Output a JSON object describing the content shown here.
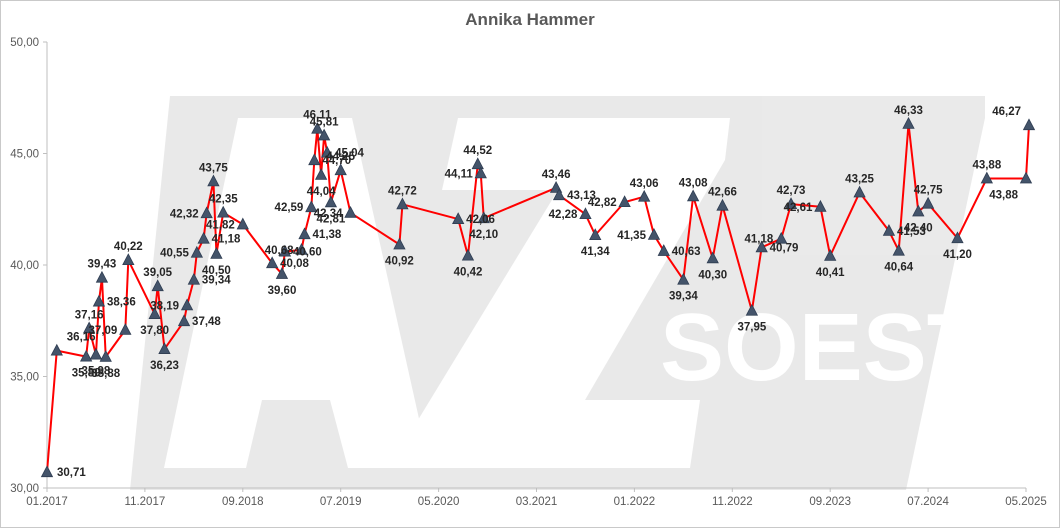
{
  "chart_data": {
    "type": "line",
    "title": "Annika Hammer",
    "xlabel": "",
    "ylabel": "",
    "ylim": [
      30,
      50
    ],
    "yticks": [
      "30,00",
      "35,00",
      "40,00",
      "45,00",
      "50,00"
    ],
    "xlim": [
      "2017-01",
      "2025-05"
    ],
    "xticks": [
      "01.2017",
      "11.2017",
      "09.2018",
      "07.2019",
      "05.2020",
      "03.2021",
      "01.2022",
      "11.2022",
      "09.2023",
      "07.2024",
      "05.2025"
    ],
    "grid": false,
    "legend": "none",
    "series_color": "#ff0000",
    "marker_color": "#44546a",
    "watermark_text": "AZ SOEST",
    "series": [
      {
        "points": [
          {
            "x": "2017-01",
            "y": 30.71,
            "label": "30,71"
          },
          {
            "x": "2017-02",
            "y": 36.16,
            "label": "36,16"
          },
          {
            "x": "2017-05",
            "y": 35.89,
            "label": "35,89"
          },
          {
            "x": "2017-05",
            "y": 37.16,
            "label": "37,16"
          },
          {
            "x": "2017-06",
            "y": 35.98,
            "label": "35,98"
          },
          {
            "x": "2017-06",
            "y": 38.36,
            "label": "38,36"
          },
          {
            "x": "2017-06",
            "y": 39.43,
            "label": "39,43"
          },
          {
            "x": "2017-07",
            "y": 35.88,
            "label": "35,88"
          },
          {
            "x": "2017-09",
            "y": 37.09,
            "label": "37,09"
          },
          {
            "x": "2017-09",
            "y": 40.22,
            "label": "40,22"
          },
          {
            "x": "2017-12",
            "y": 37.8,
            "label": "37,80"
          },
          {
            "x": "2017-12",
            "y": 39.05,
            "label": "39,05"
          },
          {
            "x": "2018-01",
            "y": 36.23,
            "label": "36,23"
          },
          {
            "x": "2018-03",
            "y": 37.48,
            "label": "37,48"
          },
          {
            "x": "2018-03",
            "y": 38.19,
            "label": "38,19"
          },
          {
            "x": "2018-04",
            "y": 39.34,
            "label": "39,34"
          },
          {
            "x": "2018-04",
            "y": 40.55,
            "label": "40,55"
          },
          {
            "x": "2018-05",
            "y": 41.18,
            "label": "41,18"
          },
          {
            "x": "2018-05",
            "y": 42.32,
            "label": "42,32"
          },
          {
            "x": "2018-06",
            "y": 43.75,
            "label": "43,75"
          },
          {
            "x": "2018-06",
            "y": 40.5,
            "label": "40,50"
          },
          {
            "x": "2018-07",
            "y": 42.35,
            "label": "42,35"
          },
          {
            "x": "2018-09",
            "y": 41.82,
            "label": "41,82"
          },
          {
            "x": "2018-12",
            "y": 40.08,
            "label": "40,08"
          },
          {
            "x": "2019-01",
            "y": 39.6,
            "label": "39,60"
          },
          {
            "x": "2019-01",
            "y": 40.6,
            "label": "40,60"
          },
          {
            "x": "2019-03",
            "y": 40.68,
            "label": "40,68"
          },
          {
            "x": "2019-03",
            "y": 41.38,
            "label": "41,38"
          },
          {
            "x": "2019-04",
            "y": 42.59,
            "label": "42,59"
          },
          {
            "x": "2019-04",
            "y": 44.7,
            "label": "44,70"
          },
          {
            "x": "2019-04",
            "y": 46.11,
            "label": "46,11"
          },
          {
            "x": "2019-05",
            "y": 44.04,
            "label": "44,04"
          },
          {
            "x": "2019-05",
            "y": 45.81,
            "label": "45,81"
          },
          {
            "x": "2019-05",
            "y": 45.04,
            "label": "45,04"
          },
          {
            "x": "2019-06",
            "y": 42.81,
            "label": "42,81"
          },
          {
            "x": "2019-07",
            "y": 44.25,
            "label": "44,25"
          },
          {
            "x": "2019-08",
            "y": 42.34,
            "label": "42,34"
          },
          {
            "x": "2020-01",
            "y": 40.92,
            "label": "40,92"
          },
          {
            "x": "2020-01",
            "y": 42.72,
            "label": "42,72"
          },
          {
            "x": "2020-07",
            "y": 42.06,
            "label": "42,06"
          },
          {
            "x": "2020-08",
            "y": 40.42,
            "label": "40,42"
          },
          {
            "x": "2020-09",
            "y": 44.52,
            "label": "44,52"
          },
          {
            "x": "2020-09",
            "y": 44.11,
            "label": "44,11"
          },
          {
            "x": "2020-09",
            "y": 42.1,
            "label": "42,10"
          },
          {
            "x": "2021-05",
            "y": 43.46,
            "label": "43,46"
          },
          {
            "x": "2021-05",
            "y": 43.13,
            "label": "43,13"
          },
          {
            "x": "2021-08",
            "y": 42.28,
            "label": "42,28"
          },
          {
            "x": "2021-09",
            "y": 41.34,
            "label": "41,34"
          },
          {
            "x": "2021-12",
            "y": 42.82,
            "label": "42,82"
          },
          {
            "x": "2022-02",
            "y": 43.06,
            "label": "43,06"
          },
          {
            "x": "2022-03",
            "y": 41.35,
            "label": "41,35"
          },
          {
            "x": "2022-04",
            "y": 40.63,
            "label": "40,63"
          },
          {
            "x": "2022-06",
            "y": 39.34,
            "label": "39,34"
          },
          {
            "x": "2022-07",
            "y": 43.08,
            "label": "43,08"
          },
          {
            "x": "2022-09",
            "y": 40.3,
            "label": "40,30"
          },
          {
            "x": "2022-10",
            "y": 42.66,
            "label": "42,66"
          },
          {
            "x": "2023-01",
            "y": 37.95,
            "label": "37,95"
          },
          {
            "x": "2023-02",
            "y": 40.79,
            "label": "40,79"
          },
          {
            "x": "2023-04",
            "y": 41.18,
            "label": "41,18"
          },
          {
            "x": "2023-05",
            "y": 42.73,
            "label": "42,73"
          },
          {
            "x": "2023-08",
            "y": 42.61,
            "label": "42,61"
          },
          {
            "x": "2023-09",
            "y": 40.41,
            "label": "40,41"
          },
          {
            "x": "2023-12",
            "y": 43.25,
            "label": "43,25"
          },
          {
            "x": "2024-03",
            "y": 41.53,
            "label": "41,53"
          },
          {
            "x": "2024-04",
            "y": 40.64,
            "label": "40,64"
          },
          {
            "x": "2024-05",
            "y": 46.33,
            "label": "46,33"
          },
          {
            "x": "2024-06",
            "y": 42.4,
            "label": "42,40"
          },
          {
            "x": "2024-07",
            "y": 42.75,
            "label": "42,75"
          },
          {
            "x": "2024-10",
            "y": 41.2,
            "label": "41,20"
          },
          {
            "x": "2025-01",
            "y": 43.88,
            "label": "43,88"
          },
          {
            "x": "2025-05",
            "y": 43.88,
            "label": "43,88"
          },
          {
            "x": "2025-05",
            "y": 46.27,
            "label": "46,27"
          }
        ]
      }
    ]
  }
}
